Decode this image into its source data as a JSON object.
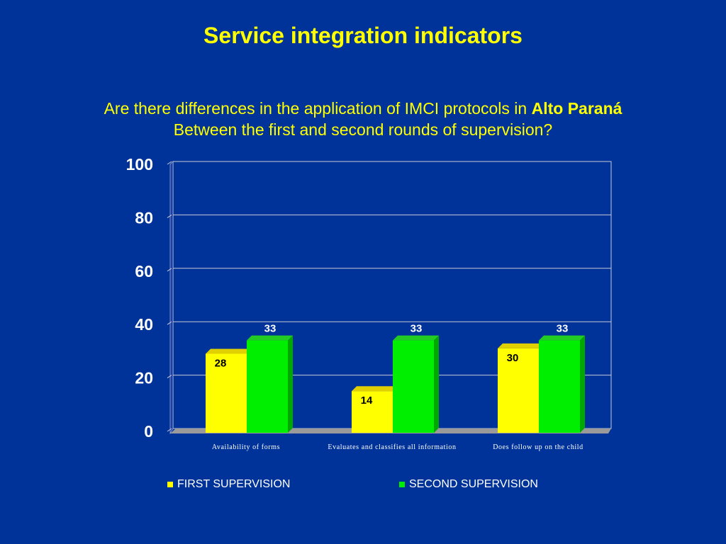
{
  "title": "Service integration indicators",
  "question": {
    "line1_prefix": "Are there differences in the application of IMCI protocols in ",
    "line1_strong": "Alto Paraná",
    "line2": "Between the first and second rounds of supervision?"
  },
  "colors": {
    "background": "#003399",
    "title_text": "#ffff00",
    "first": "#ffff00",
    "first_side": "#c8c800",
    "first_top": "#e0d000",
    "second": "#00ee00",
    "second_side": "#00a800",
    "second_top": "#22cc22",
    "grid": "#c8c8d8",
    "floor": "#9a9a9a"
  },
  "chart_data": {
    "type": "bar",
    "categories": [
      "Availability of forms",
      "Evaluates and classifies all information",
      "Does follow up on the child"
    ],
    "series": [
      {
        "name": "FIRST SUPERVISION",
        "values": [
          28,
          14,
          30
        ]
      },
      {
        "name": "SECOND SUPERVISION",
        "values": [
          33,
          33,
          33
        ]
      }
    ],
    "y_ticks": [
      0,
      20,
      40,
      60,
      80,
      100
    ],
    "ylim": [
      0,
      100
    ],
    "grid": true,
    "legend_position": "bottom",
    "title": "",
    "xlabel": "",
    "ylabel": ""
  },
  "legend": {
    "first_label": "FIRST SUPERVISION",
    "second_label": "SECOND SUPERVISION"
  }
}
